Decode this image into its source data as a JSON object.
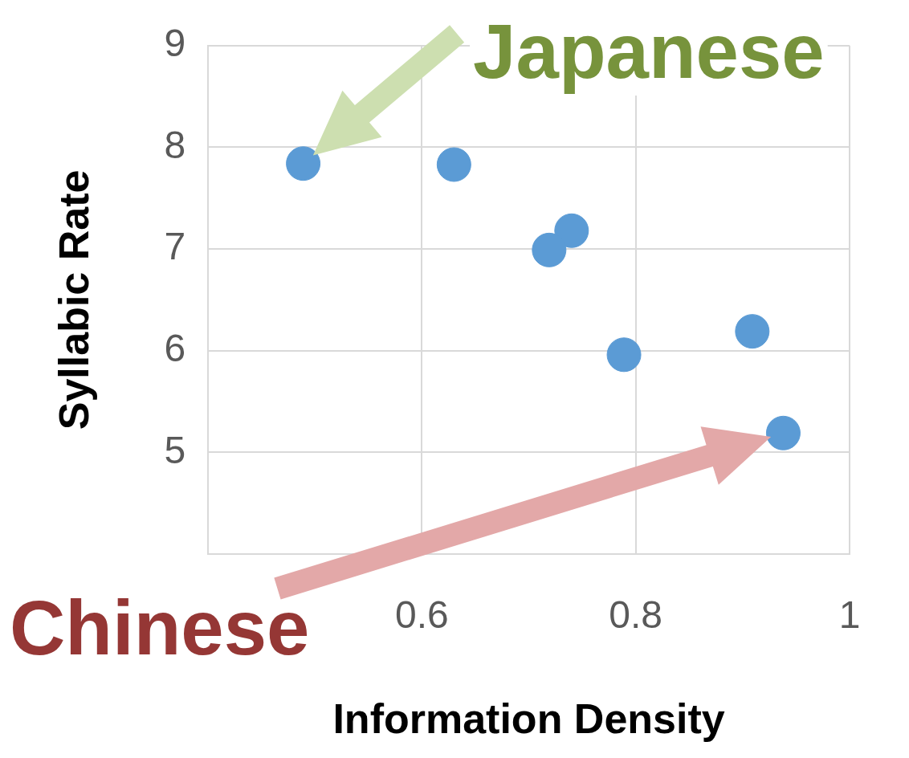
{
  "chart_data": {
    "type": "scatter",
    "xlabel": "Information Density",
    "ylabel": "Syllabic Rate",
    "x": [
      0.489,
      0.63,
      0.74,
      0.719,
      0.789,
      0.909,
      0.938
    ],
    "values": [
      7.84,
      7.83,
      7.18,
      6.99,
      5.96,
      6.19,
      5.19
    ],
    "color": "#5b9bd5",
    "marker": "circle",
    "xlim": [
      0.4,
      1
    ],
    "xticks": [
      {
        "value": 0.4,
        "label": null
      },
      0.6,
      0.8,
      1
    ],
    "ylim": [
      4,
      9
    ],
    "yticks": [
      {
        "value": 4,
        "label": null
      },
      5,
      6,
      7,
      8,
      9
    ],
    "grid": true,
    "legend": false,
    "annotations": [
      "Japanese",
      "Chinese"
    ]
  }
}
